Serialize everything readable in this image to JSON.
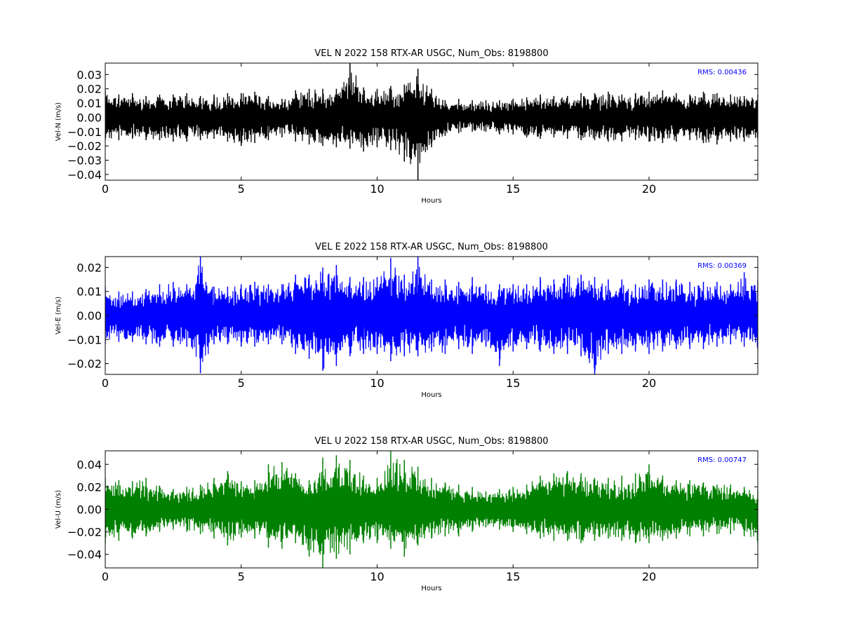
{
  "chart_data": [
    {
      "type": "line",
      "title": "VEL N 2022 158 RTX-AR  USGC, Num_Obs: 8198800",
      "xlabel": "Hours",
      "ylabel": "Vel-N (m/s)",
      "xlim": [
        0,
        24
      ],
      "ylim": [
        -0.044,
        0.038
      ],
      "x_ticks": [
        0,
        5,
        10,
        15,
        20
      ],
      "x_tick_labels": [
        "0",
        "5",
        "10",
        "15",
        "20"
      ],
      "y_ticks": [
        -0.04,
        -0.03,
        -0.02,
        -0.01,
        0.0,
        0.01,
        0.02,
        0.03
      ],
      "y_tick_labels": [
        "−0.04",
        "−0.03",
        "−0.02",
        "−0.01",
        "0.00",
        "0.01",
        "0.02",
        "0.03"
      ],
      "rms_label": "RMS:  0.00436",
      "color": "#000000",
      "series": [
        {
          "x": [
            0,
            0.5,
            1,
            1.5,
            2,
            2.5,
            3,
            3.5,
            4,
            4.5,
            5,
            5.5,
            6,
            6.5,
            7,
            7.5,
            8,
            8.5,
            9,
            9.5,
            10,
            10.5,
            11,
            11.5,
            12,
            12.5,
            13,
            13.5,
            14,
            14.5,
            15,
            15.5,
            16,
            16.5,
            17,
            17.5,
            18,
            18.5,
            19,
            19.5,
            20,
            20.5,
            21,
            21.5,
            22,
            22.5,
            23,
            23.5,
            24
          ],
          "upper": [
            0.019,
            0.016,
            0.017,
            0.015,
            0.016,
            0.016,
            0.017,
            0.015,
            0.016,
            0.017,
            0.017,
            0.018,
            0.015,
            0.013,
            0.019,
            0.02,
            0.02,
            0.02,
            0.038,
            0.021,
            0.02,
            0.022,
            0.023,
            0.034,
            0.02,
            0.012,
            0.013,
            0.012,
            0.012,
            0.012,
            0.013,
            0.014,
            0.016,
            0.015,
            0.015,
            0.017,
            0.017,
            0.018,
            0.016,
            0.017,
            0.018,
            0.019,
            0.017,
            0.016,
            0.018,
            0.017,
            0.016,
            0.015,
            0.016
          ],
          "lower": [
            -0.016,
            -0.016,
            -0.015,
            -0.016,
            -0.016,
            -0.017,
            -0.017,
            -0.016,
            -0.015,
            -0.017,
            -0.02,
            -0.018,
            -0.016,
            -0.014,
            -0.017,
            -0.019,
            -0.02,
            -0.021,
            -0.022,
            -0.024,
            -0.021,
            -0.023,
            -0.031,
            -0.044,
            -0.021,
            -0.013,
            -0.011,
            -0.01,
            -0.01,
            -0.012,
            -0.012,
            -0.014,
            -0.015,
            -0.014,
            -0.015,
            -0.016,
            -0.016,
            -0.017,
            -0.017,
            -0.016,
            -0.017,
            -0.018,
            -0.017,
            -0.016,
            -0.018,
            -0.019,
            -0.017,
            -0.017,
            -0.016
          ]
        }
      ]
    },
    {
      "type": "line",
      "title": "VEL E 2022 158 RTX-AR  USGC, Num_Obs: 8198800",
      "xlabel": "Hours",
      "ylabel": "Vel-E (m/s)",
      "xlim": [
        0,
        24
      ],
      "ylim": [
        -0.0245,
        0.0245
      ],
      "x_ticks": [
        0,
        5,
        10,
        15,
        20
      ],
      "x_tick_labels": [
        "0",
        "5",
        "10",
        "15",
        "20"
      ],
      "y_ticks": [
        -0.02,
        -0.01,
        0.0,
        0.01,
        0.02
      ],
      "y_tick_labels": [
        "−0.02",
        "−0.01",
        "0.00",
        "0.01",
        "0.02"
      ],
      "rms_label": "RMS:  0.00369",
      "color": "#0000ff",
      "series": [
        {
          "x": [
            0,
            0.5,
            1,
            1.5,
            2,
            2.5,
            3,
            3.5,
            4,
            4.5,
            5,
            5.5,
            6,
            6.5,
            7,
            7.5,
            8,
            8.5,
            9,
            9.5,
            10,
            10.5,
            11,
            11.5,
            12,
            12.5,
            13,
            13.5,
            14,
            14.5,
            15,
            15.5,
            16,
            16.5,
            17,
            17.5,
            18,
            18.5,
            19,
            19.5,
            20,
            20.5,
            21,
            21.5,
            22,
            22.5,
            23,
            23.5,
            24
          ],
          "upper": [
            0.012,
            0.01,
            0.01,
            0.011,
            0.013,
            0.014,
            0.013,
            0.025,
            0.012,
            0.012,
            0.013,
            0.014,
            0.013,
            0.013,
            0.017,
            0.017,
            0.02,
            0.021,
            0.016,
            0.016,
            0.016,
            0.024,
            0.017,
            0.025,
            0.015,
            0.015,
            0.014,
            0.016,
            0.013,
            0.013,
            0.013,
            0.013,
            0.016,
            0.015,
            0.017,
            0.017,
            0.016,
            0.015,
            0.015,
            0.013,
            0.015,
            0.015,
            0.015,
            0.014,
            0.014,
            0.014,
            0.013,
            0.018,
            0.015
          ],
          "lower": [
            -0.012,
            -0.011,
            -0.011,
            -0.012,
            -0.013,
            -0.013,
            -0.013,
            -0.024,
            -0.012,
            -0.012,
            -0.013,
            -0.013,
            -0.012,
            -0.012,
            -0.016,
            -0.018,
            -0.023,
            -0.021,
            -0.017,
            -0.016,
            -0.016,
            -0.019,
            -0.017,
            -0.017,
            -0.015,
            -0.016,
            -0.014,
            -0.016,
            -0.013,
            -0.021,
            -0.015,
            -0.014,
            -0.015,
            -0.016,
            -0.016,
            -0.017,
            -0.025,
            -0.016,
            -0.016,
            -0.015,
            -0.016,
            -0.015,
            -0.014,
            -0.014,
            -0.014,
            -0.013,
            -0.012,
            -0.013,
            -0.014
          ]
        }
      ]
    },
    {
      "type": "line",
      "title": "VEL U 2022 158 RTX-AR  USGC, Num_Obs: 8198800",
      "xlabel": "Hours",
      "ylabel": "Vel-U (m/s)",
      "xlim": [
        0,
        24
      ],
      "ylim": [
        -0.052,
        0.052
      ],
      "x_ticks": [
        0,
        5,
        10,
        15,
        20
      ],
      "x_tick_labels": [
        "0",
        "5",
        "10",
        "15",
        "20"
      ],
      "y_ticks": [
        -0.04,
        -0.02,
        0.0,
        0.02,
        0.04
      ],
      "y_tick_labels": [
        "−0.04",
        "−0.02",
        "0.00",
        "0.02",
        "0.04"
      ],
      "rms_label": "RMS:  0.00747",
      "color": "#008000",
      "series": [
        {
          "x": [
            0,
            0.5,
            1,
            1.5,
            2,
            2.5,
            3,
            3.5,
            4,
            4.5,
            5,
            5.5,
            6,
            6.5,
            7,
            7.5,
            8,
            8.5,
            9,
            9.5,
            10,
            10.5,
            11,
            11.5,
            12,
            12.5,
            13,
            13.5,
            14,
            14.5,
            15,
            15.5,
            16,
            16.5,
            17,
            17.5,
            18,
            18.5,
            19,
            19.5,
            20,
            20.5,
            21,
            21.5,
            22,
            22.5,
            23,
            23.5,
            24
          ],
          "upper": [
            0.028,
            0.026,
            0.025,
            0.028,
            0.021,
            0.018,
            0.02,
            0.022,
            0.028,
            0.034,
            0.025,
            0.026,
            0.04,
            0.042,
            0.032,
            0.026,
            0.046,
            0.048,
            0.044,
            0.03,
            0.028,
            0.052,
            0.044,
            0.038,
            0.028,
            0.024,
            0.022,
            0.02,
            0.016,
            0.018,
            0.02,
            0.022,
            0.03,
            0.032,
            0.034,
            0.032,
            0.028,
            0.028,
            0.03,
            0.032,
            0.04,
            0.03,
            0.026,
            0.026,
            0.024,
            0.022,
            0.022,
            0.02,
            0.018
          ],
          "lower": [
            -0.03,
            -0.028,
            -0.026,
            -0.024,
            -0.02,
            -0.018,
            -0.02,
            -0.022,
            -0.026,
            -0.032,
            -0.025,
            -0.026,
            -0.034,
            -0.035,
            -0.03,
            -0.042,
            -0.052,
            -0.044,
            -0.04,
            -0.03,
            -0.03,
            -0.035,
            -0.042,
            -0.032,
            -0.026,
            -0.024,
            -0.024,
            -0.02,
            -0.016,
            -0.018,
            -0.02,
            -0.022,
            -0.026,
            -0.028,
            -0.028,
            -0.03,
            -0.028,
            -0.026,
            -0.028,
            -0.03,
            -0.03,
            -0.028,
            -0.026,
            -0.024,
            -0.024,
            -0.022,
            -0.022,
            -0.024,
            -0.03
          ]
        }
      ]
    }
  ]
}
